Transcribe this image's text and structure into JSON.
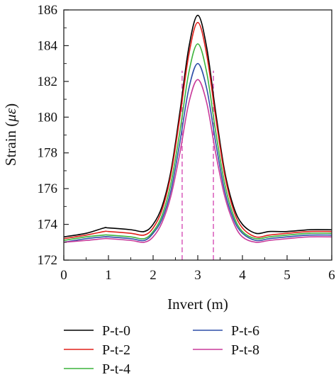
{
  "chart_data": {
    "type": "line",
    "title": "",
    "xlabel": "Invert (m)",
    "ylabel": "Strain (",
    "ylabel_unit": "με",
    "ylabel_close": ")",
    "xlim": [
      0,
      6
    ],
    "ylim": [
      172,
      186
    ],
    "xticks": [
      "0",
      "1",
      "2",
      "3",
      "4",
      "5",
      "6"
    ],
    "yticks": [
      "172",
      "174",
      "176",
      "178",
      "180",
      "182",
      "184",
      "186"
    ],
    "grid": false,
    "legend_position": "bottom",
    "x": [
      0,
      0.5,
      0.9,
      1.0,
      1.5,
      1.8,
      2.0,
      2.2,
      2.4,
      2.6,
      2.8,
      3.0,
      3.2,
      3.4,
      3.6,
      3.8,
      4.0,
      4.3,
      4.6,
      5.0,
      5.5,
      6.0
    ],
    "series": [
      {
        "name": "P-t-0",
        "color": "#000000",
        "values": [
          173.3,
          173.5,
          173.8,
          173.8,
          173.7,
          173.6,
          174.0,
          175.0,
          177.0,
          180.3,
          183.9,
          185.7,
          183.9,
          180.3,
          177.0,
          175.0,
          174.0,
          173.5,
          173.6,
          173.6,
          173.7,
          173.7
        ]
      },
      {
        "name": "P-t-2",
        "color": "#e0201b",
        "values": [
          173.2,
          173.4,
          173.6,
          173.6,
          173.5,
          173.4,
          173.8,
          174.8,
          176.8,
          180.0,
          183.5,
          185.3,
          183.5,
          180.0,
          176.8,
          174.8,
          173.8,
          173.3,
          173.4,
          173.5,
          173.6,
          173.6
        ]
      },
      {
        "name": "P-t-4",
        "color": "#3cb33c",
        "values": [
          173.1,
          173.3,
          173.4,
          173.4,
          173.3,
          173.2,
          173.6,
          174.5,
          176.3,
          179.2,
          182.5,
          184.1,
          182.5,
          179.2,
          176.3,
          174.5,
          173.6,
          173.2,
          173.3,
          173.4,
          173.5,
          173.5
        ]
      },
      {
        "name": "P-t-6",
        "color": "#2e4fa8",
        "values": [
          173.0,
          173.2,
          173.3,
          173.3,
          173.2,
          173.1,
          173.5,
          174.3,
          175.9,
          178.6,
          181.6,
          183.0,
          181.6,
          178.6,
          175.9,
          174.3,
          173.5,
          173.1,
          173.2,
          173.3,
          173.4,
          173.4
        ]
      },
      {
        "name": "P-t-8",
        "color": "#c83a9a",
        "values": [
          173.0,
          173.1,
          173.2,
          173.2,
          173.1,
          173.0,
          173.3,
          174.1,
          175.6,
          178.0,
          180.8,
          182.1,
          180.8,
          178.0,
          175.6,
          174.1,
          173.3,
          173.0,
          173.1,
          173.2,
          173.3,
          173.3
        ]
      }
    ],
    "reference_lines": {
      "x": [
        2.65,
        3.35
      ],
      "y_range": [
        172,
        182.6
      ],
      "color": "#d64fb5",
      "style": "dashed"
    }
  }
}
